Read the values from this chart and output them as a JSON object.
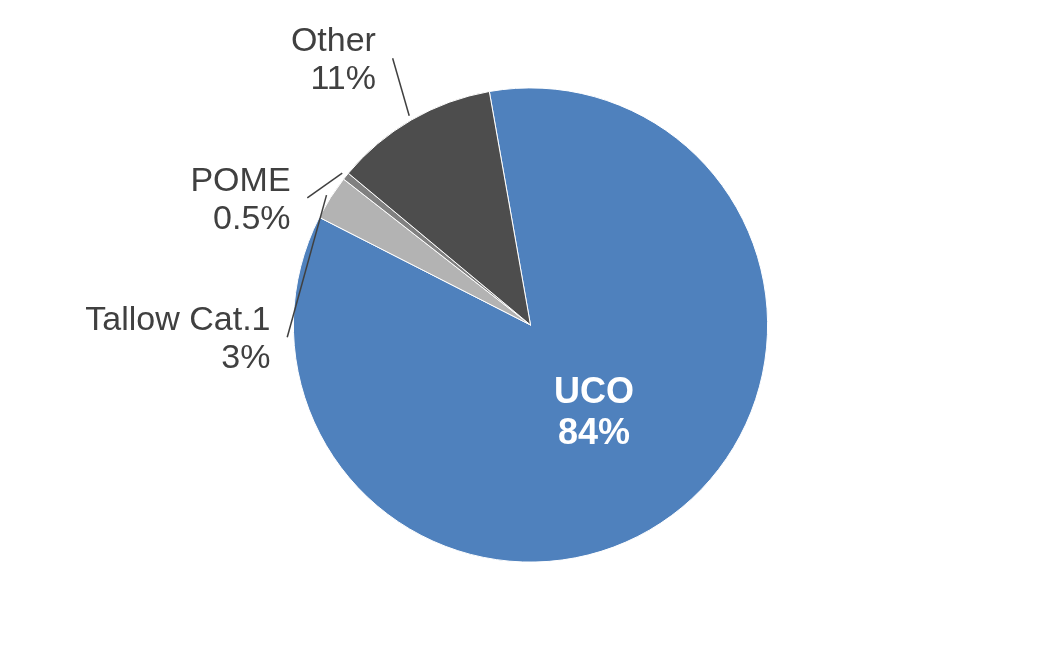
{
  "chart_data": {
    "type": "pie",
    "categories": [
      "UCO",
      "Tallow Cat.1",
      "POME",
      "Other"
    ],
    "values": [
      84,
      3,
      0.5,
      11
    ],
    "value_labels": [
      "84%",
      "3%",
      "0.5%",
      "11%"
    ],
    "colors": [
      "#4f81bd",
      "#b3b3b3",
      "#808080",
      "#4d4d4d"
    ],
    "legend": false
  }
}
